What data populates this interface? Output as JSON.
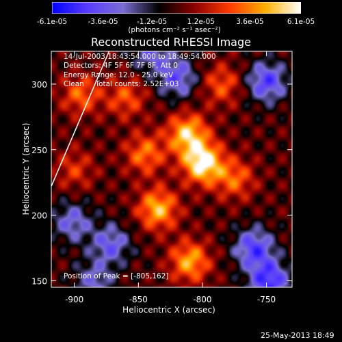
{
  "chart_data": {
    "type": "heatmap",
    "title": "Reconstructed RHESSI Image",
    "xlabel": "Heliocentric X (arcsec)",
    "ylabel": "Heliocentric Y (arcsec)",
    "xlim": [
      -918,
      -730
    ],
    "ylim": [
      145,
      325
    ],
    "x_ticks": [
      "-900",
      "-850",
      "-800",
      "-750"
    ],
    "x_tick_values": [
      -900,
      -850,
      -800,
      -750
    ],
    "y_ticks": [
      "150",
      "200",
      "250",
      "300"
    ],
    "y_tick_values": [
      150,
      200,
      250,
      300
    ],
    "colorbar": {
      "ticks": [
        "-6.1e-05",
        "-3.6e-05",
        "-1.2e-05",
        "1.2e-05",
        "3.6e-05",
        "6.1e-05"
      ],
      "tick_values": [
        -6.1e-05,
        -3.6e-05,
        -1.2e-05,
        1.2e-05,
        3.6e-05,
        6.1e-05
      ],
      "range": [
        -6.1e-05,
        6.1e-05
      ],
      "units": "(photons cm⁻² s⁻¹ asec⁻²)",
      "colormap": [
        "#0000ff",
        "#5a3cff",
        "#7a6dd2",
        "#000000",
        "#8b0000",
        "#ff3b00",
        "#ffb000",
        "#ffffff"
      ]
    },
    "annotations": {
      "time_range": "14-Jul-2003 18:43:54.000 to 18:49:54.000",
      "detectors": "Detectors: 4F 5F 6F 7F 8F, Att 0",
      "energy": "Energy Range: 12.0 - 25.0 keV",
      "clean": "Clean     Total counts: 2.52E+03",
      "peak": "Position of Peak = [-805,162]"
    },
    "peak_position": [
      -805,
      162
    ],
    "limb_line": {
      "x": [
        -918,
        -872
      ],
      "y": [
        222,
        327
      ]
    },
    "sources": [
      {
        "x": -800,
        "y": 240,
        "intensity": 1.0
      },
      {
        "x": -812,
        "y": 262,
        "intensity": 0.8
      },
      {
        "x": -845,
        "y": 247,
        "intensity": 0.55
      },
      {
        "x": -835,
        "y": 205,
        "intensity": 0.75
      },
      {
        "x": -895,
        "y": 292,
        "intensity": 0.5
      },
      {
        "x": -810,
        "y": 165,
        "intensity": 0.7
      },
      {
        "x": -775,
        "y": 228,
        "intensity": 0.5
      },
      {
        "x": -785,
        "y": 300,
        "intensity": 0.45
      },
      {
        "x": -860,
        "y": 290,
        "intensity": 0.45
      },
      {
        "x": -900,
        "y": 235,
        "intensity": 0.35
      },
      {
        "x": -750,
        "y": 302,
        "intensity": -0.7
      },
      {
        "x": -820,
        "y": 305,
        "intensity": -0.6
      },
      {
        "x": -872,
        "y": 178,
        "intensity": -0.55
      },
      {
        "x": -760,
        "y": 175,
        "intensity": -0.7
      },
      {
        "x": -902,
        "y": 195,
        "intensity": -0.5
      },
      {
        "x": -840,
        "y": 325,
        "intensity": -0.5
      },
      {
        "x": -748,
        "y": 150,
        "intensity": -0.8
      },
      {
        "x": -885,
        "y": 150,
        "intensity": -0.45
      }
    ]
  },
  "footer": {
    "timestamp": "25-May-2013 18:49"
  }
}
